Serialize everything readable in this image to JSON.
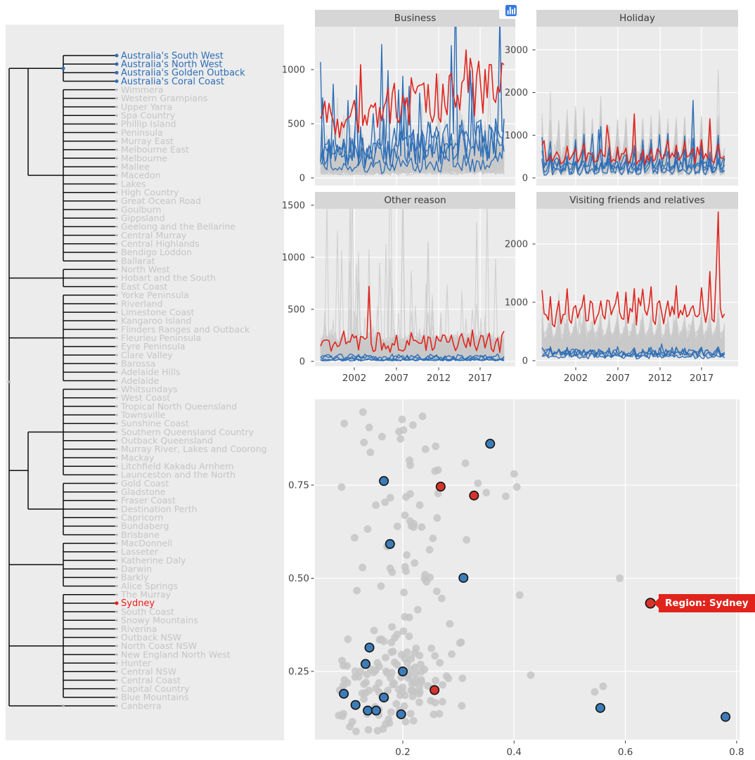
{
  "style": {
    "page_bg": "#ffffff",
    "left_panel_bg": "#ECECEC",
    "panel_bg": "#EBEBEB",
    "strip_bg": "#D6D6D6",
    "strip_text": "#383838",
    "gridline": "#FFFFFF",
    "tick_text": "#444444",
    "tick_mark": "#333333",
    "series_gray": "#c9c9c9",
    "series_blue": "#2e6fb7",
    "series_red": "#e0261e",
    "dendro_line": "#0d0d0d",
    "leaf_gray_text": "#c5c5c5",
    "leaf_blue_text": "#2e6db4",
    "leaf_red_text": "#ed1c16",
    "leaf_gray_dot": "#b9b9b9",
    "scatter_gray_dot": "#c6c6c6",
    "scatter_blue_dot": "#3c7cb8",
    "scatter_red_dot": "#d5342c",
    "dot_outline": "#111111",
    "tooltip_bg": "#e0241c",
    "tooltip_text": "#ffffff",
    "modebar_icon": "#b4b4b4",
    "modebar_active": "#4a4a4a",
    "modebar_dark": "#787878",
    "logo_blue": "#3679e0"
  },
  "modebar": {
    "icons": [
      {
        "name": "camera",
        "group": 0
      },
      {
        "name": "zoom",
        "group": 1,
        "active": true
      },
      {
        "name": "pan",
        "group": 1
      },
      {
        "name": "box-select",
        "group": 1
      },
      {
        "name": "lasso-select",
        "group": 1
      },
      {
        "name": "zoom-in",
        "group": 2
      },
      {
        "name": "zoom-out",
        "group": 2
      },
      {
        "name": "autoscale",
        "group": 2
      },
      {
        "name": "reset-axes",
        "group": 2
      },
      {
        "name": "toggle-spike-lines",
        "group": 3
      },
      {
        "name": "hover-closest",
        "group": 3
      },
      {
        "name": "hover-compare",
        "group": 3
      },
      {
        "name": "plotly-logo",
        "group": 4
      }
    ]
  },
  "chart_data": [
    {
      "type": "dendrogram",
      "orientation": "right-labels",
      "leaves": [
        "Australia's South West",
        "Australia's North West",
        "Australia's Golden Outback",
        "Australia's Coral Coast",
        "Wimmera",
        "Western Grampians",
        "Upper Yarra",
        "Spa Country",
        "Phillip Island",
        "Peninsula",
        "Murray East",
        "Melbourne East",
        "Melbourne",
        "Mallee",
        "Macedon",
        "Lakes",
        "High Country",
        "Great Ocean Road",
        "Goulburn",
        "Gippsland",
        "Geelong and the Bellarine",
        "Central Murray",
        "Central Highlands",
        "Bendigo Loddon",
        "Ballarat",
        "North West",
        "Hobart and the South",
        "East Coast",
        "Yorke Peninsula",
        "Riverland",
        "Limestone Coast",
        "Kangaroo Island",
        "Flinders Ranges and Outback",
        "Fleurieu Peninsula",
        "Eyre Peninsula",
        "Clare Valley",
        "Barossa",
        "Adelaide Hills",
        "Adelaide",
        "Whitsundays",
        "West Coast",
        "Tropical North Queensland",
        "Townsville",
        "Sunshine Coast",
        "Southern Queensland Country",
        "Outback Queensland",
        "Murray River, Lakes and Coorong",
        "Mackay",
        "Litchfield Kakadu Arnhem",
        "Launceston and the North",
        "Gold Coast",
        "Gladstone",
        "Fraser Coast",
        "Destination Perth",
        "Capricorn",
        "Bundaberg",
        "Brisbane",
        "MacDonnell",
        "Lasseter",
        "Katherine Daly",
        "Darwin",
        "Barkly",
        "Alice Springs",
        "The Murray",
        "Sydney",
        "South Coast",
        "Snowy Mountains",
        "Riverina",
        "Outback NSW",
        "North Coast NSW",
        "New England North West",
        "Hunter",
        "Central NSW",
        "Central Coast",
        "Capital Country",
        "Blue Mountains",
        "Canberra"
      ],
      "highlight": {
        "blue": [
          "Australia's South West",
          "Australia's North West",
          "Australia's Golden Outback",
          "Australia's Coral Coast"
        ],
        "red": [
          "Sydney"
        ]
      }
    },
    {
      "type": "line",
      "title": "Business",
      "y_ticks": [
        1000,
        500,
        0
      ],
      "x_ticks": [
        2002,
        2007,
        2012,
        2017
      ],
      "x_tick_labels_visible": false,
      "x_range": [
        1998,
        2019.75
      ],
      "y_range": [
        0,
        1450
      ],
      "series_groups": {
        "gray": {
          "count": 72,
          "base": [
            40,
            210
          ],
          "season": [
            1,
            0.85,
            0.92,
            1
          ],
          "noise": 0.45,
          "trend": 0.004,
          "spike_p": 0.012,
          "spike_mul": [
            2,
            3.5
          ]
        },
        "blue": {
          "count": 4,
          "base": [
            80,
            260
          ],
          "season": [
            1,
            0.8,
            0.9,
            1
          ],
          "noise": 0.6,
          "trend": 0.008,
          "spike_p": 0.1,
          "spike_mul": [
            2,
            4.5
          ],
          "overrides": {
            "0": {
              "0": 1070
            }
          }
        },
        "red": {
          "count": 1,
          "base": [
            520,
            520
          ],
          "season": [
            1,
            0.93,
            0.98,
            1.03
          ],
          "noise": 0.3,
          "trend": 0.0085,
          "spike_p": 0.05,
          "spike_mul": [
            1.25,
            1.7
          ]
        }
      }
    },
    {
      "type": "line",
      "title": "Holiday",
      "y_ticks": [
        3000,
        2000,
        1000,
        0
      ],
      "x_ticks": [
        2002,
        2007,
        2012,
        2017
      ],
      "x_tick_labels_visible": false,
      "x_range": [
        1998,
        2019.75
      ],
      "y_range": [
        0,
        3500
      ],
      "series_groups": {
        "gray": {
          "count": 72,
          "base": [
            110,
            560
          ],
          "season": [
            2.1,
            0.72,
            0.78,
            1.05
          ],
          "noise": 0.45,
          "trend": 0.0,
          "spike_p": 0.02,
          "spike_mul": [
            1.3,
            1.8
          ]
        },
        "blue": {
          "count": 4,
          "base": [
            130,
            380
          ],
          "season": [
            1.9,
            0.65,
            0.75,
            1.0
          ],
          "noise": 0.5,
          "trend": 0.0,
          "spike_p": 0.03,
          "spike_mul": [
            1.5,
            2.3
          ]
        },
        "red": {
          "count": 1,
          "base": [
            540,
            540
          ],
          "season": [
            1.3,
            0.8,
            0.85,
            1.0
          ],
          "noise": 0.28,
          "trend": 0.0,
          "spike_p": 0.025,
          "spike_mul": [
            1.6,
            2.4
          ]
        }
      }
    },
    {
      "type": "line",
      "title": "Other reason",
      "y_ticks": [
        1500,
        1000,
        500,
        0
      ],
      "x_ticks": [
        2002,
        2007,
        2012,
        2017
      ],
      "x_tick_labels_visible": true,
      "x_range": [
        1998,
        2019.75
      ],
      "y_range": [
        0,
        1470
      ],
      "series_groups": {
        "gray": {
          "count": 72,
          "base": [
            15,
            160
          ],
          "season": [
            1,
            0.95,
            1,
            1.05
          ],
          "noise": 0.75,
          "trend": 0.0,
          "spike_p": 0.01,
          "spike_mul": [
            4,
            10
          ]
        },
        "blue": {
          "count": 4,
          "base": [
            8,
            45
          ],
          "season": [
            1,
            1,
            1,
            1
          ],
          "noise": 0.75,
          "trend": 0.0,
          "spike_p": 0.0,
          "spike_mul": [
            1,
            1
          ]
        },
        "red": {
          "count": 1,
          "base": [
            185,
            185
          ],
          "season": [
            1.1,
            0.9,
            0.95,
            1.05
          ],
          "noise": 0.5,
          "trend": 0.0,
          "spike_p": 0.05,
          "spike_mul": [
            1.6,
            4
          ]
        }
      }
    },
    {
      "type": "line",
      "title": "Visiting friends and relatives",
      "y_ticks": [
        2000,
        1000,
        0
      ],
      "x_ticks": [
        2002,
        2007,
        2012,
        2017
      ],
      "x_tick_labels_visible": true,
      "x_range": [
        1998,
        2019.75
      ],
      "y_range": [
        0,
        2600
      ],
      "series_groups": {
        "gray": {
          "count": 72,
          "base": [
            90,
            430
          ],
          "season": [
            1.35,
            0.8,
            0.85,
            1.05
          ],
          "noise": 0.45,
          "trend": 0.0,
          "spike_p": 0.015,
          "spike_mul": [
            1.5,
            2.1
          ]
        },
        "blue": {
          "count": 4,
          "base": [
            60,
            190
          ],
          "season": [
            1.2,
            0.85,
            0.9,
            1
          ],
          "noise": 0.55,
          "trend": 0.0,
          "spike_p": 0.04,
          "spike_mul": [
            1.6,
            2.4
          ]
        },
        "red": {
          "count": 1,
          "base": [
            810,
            810
          ],
          "season": [
            1.28,
            0.84,
            0.88,
            1.02
          ],
          "noise": 0.2,
          "trend": 0.0015,
          "spike_p": 0.04,
          "spike_mul": [
            1.35,
            1.7
          ],
          "overrides": {
            "0": {
              "83": 1500,
              "84": 2550
            }
          }
        }
      }
    },
    {
      "type": "scatter",
      "x_tick_labels": [
        "0.2",
        "0.4",
        "0.6",
        "0.8"
      ],
      "x_tick_values": [
        0.2,
        0.4,
        0.6,
        0.8
      ],
      "y_tick_labels": [
        "0.75",
        "0.50",
        "0.25"
      ],
      "y_tick_values": [
        0.75,
        0.5,
        0.25
      ],
      "x_range": [
        0.045,
        0.805
      ],
      "y_range": [
        0.065,
        0.98
      ],
      "blue_points": [
        [
          0.357,
          0.861
        ],
        [
          0.166,
          0.761
        ],
        [
          0.177,
          0.592
        ],
        [
          0.309,
          0.501
        ],
        [
          0.14,
          0.314
        ],
        [
          0.133,
          0.27
        ],
        [
          0.2,
          0.25
        ],
        [
          0.094,
          0.19
        ],
        [
          0.115,
          0.16
        ],
        [
          0.137,
          0.145
        ],
        [
          0.152,
          0.145
        ],
        [
          0.166,
          0.18
        ],
        [
          0.197,
          0.135
        ],
        [
          0.555,
          0.152
        ],
        [
          0.78,
          0.128
        ]
      ],
      "red_points": [
        [
          0.268,
          0.746
        ],
        [
          0.328,
          0.722
        ],
        [
          0.257,
          0.2
        ]
      ],
      "tooltip": {
        "label": "Region: Sydney",
        "point": [
          0.645,
          0.433
        ]
      },
      "gray_extra_points": [
        [
          0.4,
          0.78
        ],
        [
          0.385,
          0.72
        ],
        [
          0.405,
          0.745
        ],
        [
          0.59,
          0.5
        ],
        [
          0.41,
          0.455
        ],
        [
          0.545,
          0.195
        ],
        [
          0.56,
          0.21
        ],
        [
          0.43,
          0.24
        ],
        [
          0.335,
          0.755
        ],
        [
          0.35,
          0.73
        ]
      ],
      "gray_clusters": [
        {
          "count": 118,
          "x": [
            0.06,
            0.32
          ],
          "y": [
            0.07,
            0.35
          ],
          "mode": "triangular",
          "seed": 77
        },
        {
          "count": 72,
          "x": [
            0.07,
            0.33
          ],
          "y": [
            0.32,
            0.95
          ],
          "mode": "column",
          "seed": 901
        }
      ]
    }
  ]
}
